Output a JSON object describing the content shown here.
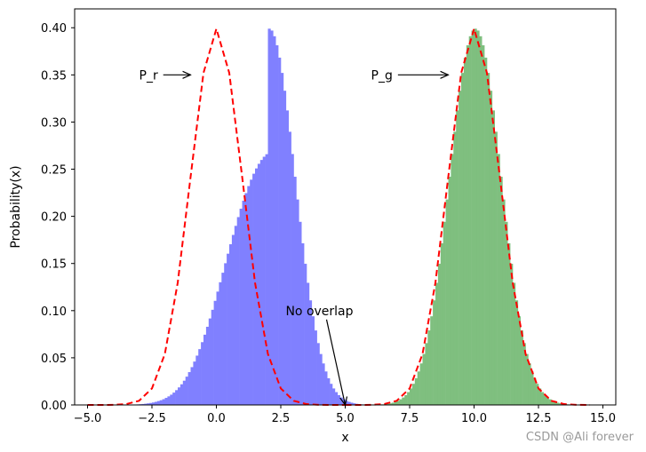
{
  "chart_data": {
    "type": "bar",
    "title": "",
    "xlabel": "x",
    "ylabel": "Probability(x)",
    "xlim": [
      -5.5,
      15.5
    ],
    "ylim": [
      0.0,
      0.42
    ],
    "xticks": [
      -5.0,
      -2.5,
      0.0,
      2.5,
      5.0,
      7.5,
      10.0,
      12.5,
      15.0
    ],
    "xtick_labels": [
      "−5.0",
      "−2.5",
      "0.0",
      "2.5",
      "5.0",
      "7.5",
      "10.0",
      "12.5",
      "15.0"
    ],
    "yticks": [
      0.0,
      0.05,
      0.1,
      0.15,
      0.2,
      0.25,
      0.3,
      0.35,
      0.4
    ],
    "ytick_labels": [
      "0.00",
      "0.05",
      "0.10",
      "0.15",
      "0.20",
      "0.25",
      "0.30",
      "0.35",
      "0.40"
    ],
    "grid": false,
    "bin_width": 0.1,
    "series": [
      {
        "type": "histogram",
        "color": "#8080ff",
        "bin_edges_start": -4.0,
        "values": [
          0.0,
          0.0,
          0.0001,
          0.0001,
          0.0001,
          0.0002,
          0.0003,
          0.0003,
          0.0005,
          0.0006,
          0.0008,
          0.001,
          0.0013,
          0.0017,
          0.0021,
          0.0026,
          0.0033,
          0.0041,
          0.005,
          0.0061,
          0.0075,
          0.0091,
          0.0109,
          0.0131,
          0.0157,
          0.0186,
          0.0219,
          0.0257,
          0.03,
          0.0348,
          0.0401,
          0.046,
          0.0523,
          0.0592,
          0.0666,
          0.0745,
          0.0829,
          0.0917,
          0.1009,
          0.1104,
          0.1202,
          0.1301,
          0.1402,
          0.1503,
          0.1604,
          0.1704,
          0.1803,
          0.1899,
          0.1992,
          0.2081,
          0.2166,
          0.2246,
          0.2321,
          0.2389,
          0.2452,
          0.2508,
          0.2557,
          0.2598,
          0.2632,
          0.2659,
          0.399,
          0.397,
          0.391,
          0.3814,
          0.3683,
          0.3521,
          0.3332,
          0.3123,
          0.2897,
          0.2661,
          0.242,
          0.2179,
          0.1942,
          0.1714,
          0.1497,
          0.1295,
          0.1109,
          0.094,
          0.079,
          0.0656,
          0.054,
          0.044,
          0.0355,
          0.0283,
          0.0224,
          0.0175,
          0.0136,
          0.0104,
          0.0079,
          0.006,
          0.0044,
          0.0033,
          0.0024,
          0.0017,
          0.0012,
          0.0009,
          0.0006,
          0.0004,
          0.0003,
          0.0002
        ]
      },
      {
        "type": "histogram",
        "color": "#7fbf7f",
        "bin_edges_start": 6.0,
        "values": [
          0.0001,
          0.0002,
          0.0003,
          0.0004,
          0.0006,
          0.0009,
          0.0012,
          0.0017,
          0.0024,
          0.0033,
          0.0044,
          0.006,
          0.0079,
          0.0104,
          0.0136,
          0.0175,
          0.0224,
          0.0283,
          0.0355,
          0.044,
          0.054,
          0.0656,
          0.079,
          0.094,
          0.1109,
          0.1295,
          0.1497,
          0.1714,
          0.1942,
          0.2179,
          0.242,
          0.2661,
          0.2897,
          0.3123,
          0.3332,
          0.3521,
          0.3683,
          0.3814,
          0.391,
          0.397,
          0.399,
          0.397,
          0.391,
          0.3814,
          0.3683,
          0.3521,
          0.3332,
          0.3123,
          0.2897,
          0.2661,
          0.242,
          0.2179,
          0.1942,
          0.1714,
          0.1497,
          0.1295,
          0.1109,
          0.094,
          0.079,
          0.0656,
          0.054,
          0.044,
          0.0355,
          0.0283,
          0.0224,
          0.0175,
          0.0136,
          0.0104,
          0.0079,
          0.006,
          0.0044,
          0.0033,
          0.0024,
          0.0017,
          0.0012,
          0.0009,
          0.0006,
          0.0004,
          0.0003,
          0.0002
        ]
      },
      {
        "type": "line",
        "style": "dashed",
        "color": "#ff0000",
        "x": [
          -5.0,
          -4.5,
          -4.0,
          -3.5,
          -3.0,
          -2.5,
          -2.0,
          -1.5,
          -1.0,
          -0.5,
          0.0,
          0.5,
          1.0,
          1.5,
          2.0,
          2.5,
          3.0,
          3.5,
          4.0,
          4.5,
          5.0
        ],
        "y": [
          0.0,
          0.0,
          0.0001,
          0.0009,
          0.0044,
          0.0175,
          0.054,
          0.1295,
          0.242,
          0.3521,
          0.3989,
          0.3521,
          0.242,
          0.1295,
          0.054,
          0.0175,
          0.0044,
          0.0009,
          0.0001,
          0.0,
          0.0
        ]
      },
      {
        "type": "line",
        "style": "dashed",
        "color": "#ff0000",
        "x": [
          5.0,
          5.5,
          6.0,
          6.5,
          7.0,
          7.5,
          8.0,
          8.5,
          9.0,
          9.5,
          10.0,
          10.5,
          11.0,
          11.5,
          12.0,
          12.5,
          13.0,
          13.5,
          14.0,
          14.5
        ],
        "y": [
          0.0,
          0.0,
          0.0001,
          0.0009,
          0.0044,
          0.0175,
          0.054,
          0.1295,
          0.242,
          0.3521,
          0.3989,
          0.3521,
          0.242,
          0.1295,
          0.054,
          0.0175,
          0.0044,
          0.0009,
          0.0001,
          0.0
        ]
      }
    ],
    "annotations": [
      {
        "text": "P_r",
        "xy": [
          -1.0,
          0.35
        ],
        "xytext": [
          -3.0,
          0.35
        ]
      },
      {
        "text": "P_g",
        "xy": [
          9.0,
          0.35
        ],
        "xytext": [
          6.0,
          0.35
        ]
      },
      {
        "text": "No overlap",
        "xy": [
          5.0,
          0.0
        ],
        "xytext": [
          4.0,
          0.1
        ]
      }
    ]
  },
  "watermark": "CSDN @Ali forever"
}
